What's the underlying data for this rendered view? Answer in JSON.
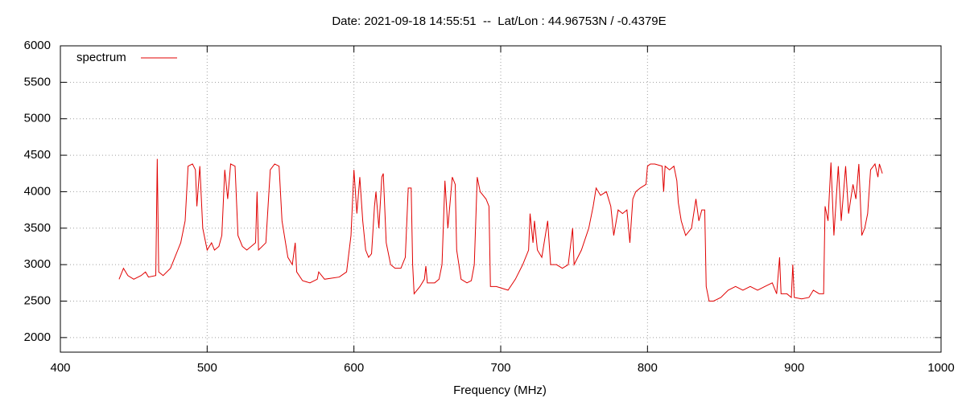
{
  "chart_data": {
    "type": "line",
    "title": "Date: 2021-09-18 14:55:51  --  Lat/Lon : 44.96753N / -0.4379E",
    "x_label": "Frequency (MHz)",
    "xlim": [
      400,
      1000
    ],
    "xticks": [
      400,
      500,
      600,
      700,
      800,
      900,
      1000
    ],
    "ylim": [
      1800,
      6000
    ],
    "yticks": [
      2000,
      2500,
      3000,
      3500,
      4000,
      4500,
      5000,
      5500,
      6000
    ],
    "grid": true,
    "legend": "top-left",
    "x": [
      440,
      443,
      446,
      450,
      455,
      458,
      460,
      465,
      466,
      467,
      470,
      475,
      478,
      480,
      482,
      485,
      487,
      490,
      492,
      493,
      495,
      497,
      500,
      503,
      505,
      508,
      510,
      512,
      514,
      516,
      519,
      521,
      524,
      527,
      530,
      533,
      534,
      535,
      540,
      543,
      546,
      549,
      551,
      555,
      558,
      560,
      561,
      565,
      570,
      575,
      576,
      580,
      590,
      595,
      598,
      600,
      602,
      604,
      606,
      608,
      610,
      612,
      614,
      615,
      617,
      619,
      620,
      622,
      625,
      628,
      632,
      635,
      637,
      639,
      640,
      641,
      645,
      648,
      649,
      650,
      655,
      658,
      660,
      662,
      664,
      667,
      669,
      670,
      673,
      677,
      680,
      682,
      684,
      686,
      690,
      692,
      693,
      697,
      705,
      710,
      715,
      719,
      720,
      722,
      723,
      725,
      728,
      732,
      734,
      738,
      742,
      746,
      749,
      750,
      755,
      760,
      763,
      765,
      768,
      772,
      775,
      777,
      780,
      783,
      786,
      788,
      790,
      792,
      795,
      799,
      800,
      802,
      805,
      810,
      811,
      812,
      815,
      818,
      820,
      821,
      823,
      826,
      830,
      833,
      835,
      837,
      839,
      840,
      842,
      845,
      850,
      855,
      860,
      865,
      870,
      875,
      880,
      885,
      888,
      890,
      891,
      895,
      898,
      899,
      900,
      905,
      910,
      913,
      917,
      920,
      921,
      923,
      925,
      927,
      930,
      932,
      935,
      937,
      940,
      942,
      944,
      946,
      948,
      950,
      952,
      955,
      957,
      958,
      960
    ],
    "series": [
      {
        "name": "spectrum",
        "color": "#e00000",
        "values": [
          2800,
          2950,
          2850,
          2800,
          2850,
          2900,
          2830,
          2850,
          4450,
          2900,
          2850,
          2950,
          3100,
          3200,
          3300,
          3600,
          4350,
          4380,
          4300,
          3800,
          4350,
          3500,
          3200,
          3300,
          3200,
          3250,
          3400,
          4300,
          3900,
          4380,
          4350,
          3400,
          3250,
          3200,
          3250,
          3300,
          4000,
          3200,
          3300,
          4300,
          4380,
          4350,
          3600,
          3100,
          3000,
          3300,
          2900,
          2780,
          2750,
          2800,
          2900,
          2800,
          2830,
          2900,
          3400,
          4300,
          3700,
          4200,
          3600,
          3200,
          3100,
          3150,
          3800,
          4000,
          3500,
          4200,
          4250,
          3300,
          3000,
          2950,
          2950,
          3100,
          4050,
          4050,
          3000,
          2600,
          2700,
          2800,
          2980,
          2750,
          2750,
          2800,
          3000,
          4150,
          3500,
          4200,
          4100,
          3200,
          2800,
          2750,
          2780,
          3000,
          4200,
          4000,
          3900,
          3800,
          2700,
          2700,
          2650,
          2800,
          3000,
          3200,
          3700,
          3300,
          3600,
          3200,
          3100,
          3600,
          3000,
          3000,
          2950,
          3000,
          3500,
          3000,
          3200,
          3500,
          3800,
          4050,
          3950,
          4000,
          3800,
          3400,
          3750,
          3700,
          3750,
          3300,
          3900,
          4000,
          4050,
          4100,
          4350,
          4380,
          4380,
          4350,
          4000,
          4350,
          4300,
          4350,
          4150,
          3850,
          3600,
          3400,
          3500,
          3900,
          3600,
          3750,
          3750,
          2700,
          2500,
          2500,
          2550,
          2650,
          2700,
          2650,
          2700,
          2650,
          2700,
          2750,
          2600,
          3100,
          2600,
          2600,
          2550,
          3000,
          2550,
          2530,
          2550,
          2650,
          2600,
          2600,
          3800,
          3600,
          4400,
          3400,
          4350,
          3600,
          4350,
          3700,
          4100,
          3900,
          4380,
          3400,
          3500,
          3700,
          4300,
          4380,
          4200,
          4380,
          4250
        ]
      }
    ]
  }
}
